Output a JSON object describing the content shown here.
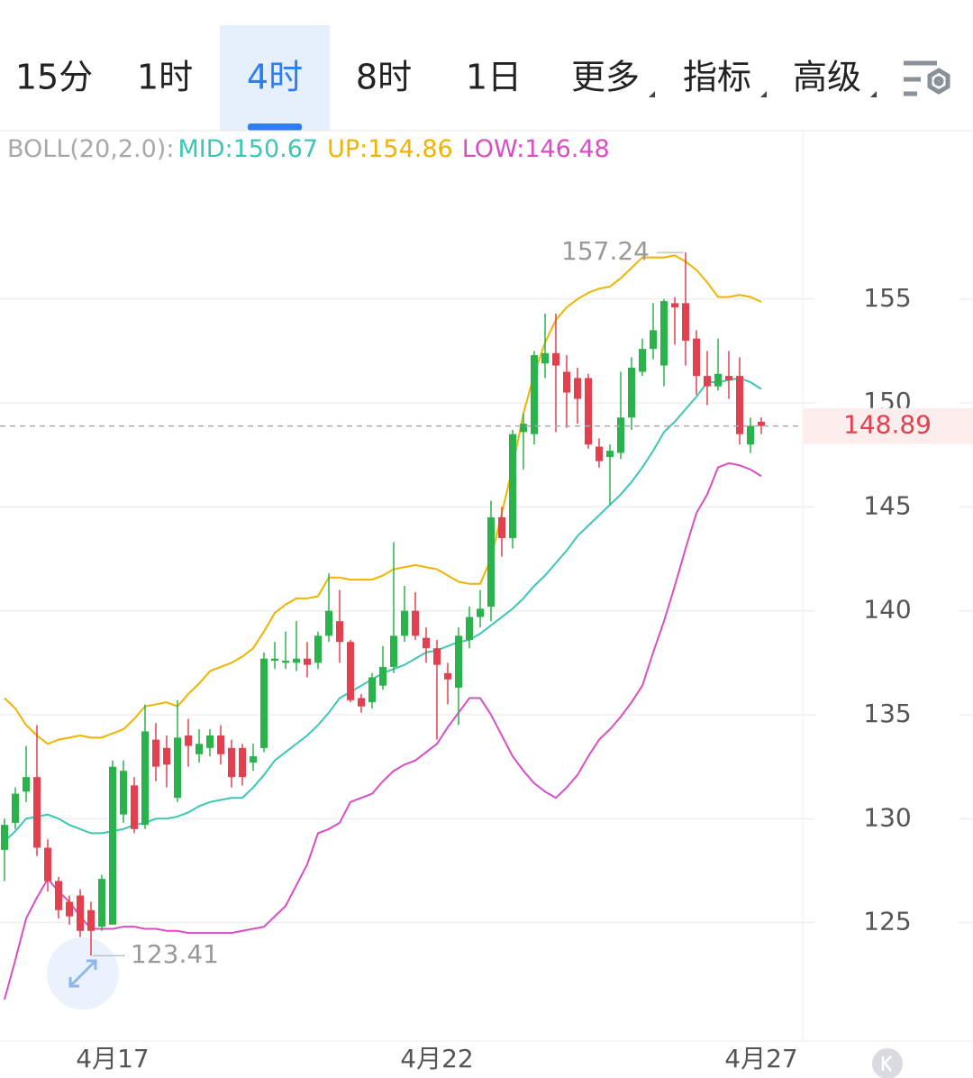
{
  "toolbar": {
    "tabs": [
      {
        "label": "15分"
      },
      {
        "label": "1时"
      },
      {
        "label": "4时",
        "active": true
      },
      {
        "label": "8时"
      },
      {
        "label": "1日"
      },
      {
        "label": "更多",
        "menu": true
      },
      {
        "label": "指标",
        "menu": true
      },
      {
        "label": "高级",
        "menu": true
      }
    ]
  },
  "chart_data": {
    "type": "candlestick",
    "indicator": {
      "label": "BOLL(20,2.0):",
      "series": [
        {
          "name": "MID:",
          "color": "#3cc6b4",
          "values": [
            128.9,
            129.4,
            130.0,
            130.1,
            130.2,
            130.0,
            129.7,
            129.5,
            129.3,
            129.3,
            129.4,
            129.5,
            129.7,
            129.8,
            130.0,
            130.0,
            130.1,
            130.3,
            130.6,
            130.8,
            130.9,
            131.0,
            131.0,
            131.5,
            132.1,
            132.8,
            133.2,
            133.6,
            134.0,
            134.5,
            135.1,
            135.8,
            136.1,
            136.4,
            136.7,
            137.0,
            137.2,
            137.4,
            137.7,
            138.0,
            138.1,
            138.3,
            138.5,
            138.6,
            138.9,
            139.3,
            139.7,
            140.1,
            140.6,
            141.2,
            141.7,
            142.3,
            142.9,
            143.6,
            144.1,
            144.6,
            145.1,
            145.6,
            146.2,
            146.9,
            147.7,
            148.6,
            149.1,
            149.7,
            150.3,
            151.0,
            151.0,
            151.1,
            151.2,
            151.0,
            150.67
          ]
        },
        {
          "name": "UP:",
          "color": "#f0b400",
          "values": [
            135.8,
            135.3,
            134.5,
            134.0,
            133.6,
            133.8,
            133.9,
            134.0,
            133.9,
            133.9,
            134.1,
            134.3,
            134.8,
            135.4,
            135.5,
            135.6,
            135.4,
            136.0,
            136.5,
            137.1,
            137.3,
            137.5,
            137.8,
            138.2,
            139.0,
            139.9,
            140.3,
            140.6,
            140.6,
            140.7,
            141.6,
            141.6,
            141.5,
            141.5,
            141.5,
            141.7,
            142.0,
            142.1,
            142.2,
            142.1,
            142.0,
            141.7,
            141.4,
            141.3,
            141.3,
            142.5,
            144.7,
            146.9,
            149.5,
            151.4,
            152.9,
            154.0,
            154.6,
            155.0,
            155.3,
            155.5,
            155.6,
            156.0,
            156.5,
            157.0,
            157.0,
            157.0,
            157.1,
            156.8,
            156.4,
            155.8,
            155.1,
            155.1,
            155.2,
            155.1,
            154.86
          ]
        },
        {
          "name": "LOW:",
          "color": "#d84ec4",
          "values": [
            121.3,
            123.2,
            125.2,
            126.2,
            127.1,
            126.5,
            126.0,
            125.3,
            124.7,
            124.7,
            124.7,
            124.8,
            124.8,
            124.7,
            124.7,
            124.6,
            124.6,
            124.5,
            124.5,
            124.5,
            124.5,
            124.5,
            124.6,
            124.7,
            124.8,
            125.3,
            125.8,
            126.8,
            127.8,
            129.3,
            129.5,
            129.8,
            130.8,
            131.0,
            131.2,
            131.8,
            132.3,
            132.6,
            132.8,
            133.2,
            133.6,
            134.4,
            135.1,
            135.8,
            135.8,
            135.0,
            134.0,
            133.0,
            132.3,
            131.7,
            131.3,
            131.0,
            131.5,
            132.1,
            133.0,
            133.8,
            134.3,
            134.9,
            135.6,
            136.4,
            138.0,
            139.5,
            141.2,
            143.0,
            144.7,
            145.6,
            146.9,
            147.1,
            147.0,
            146.8,
            146.48
          ]
        }
      ]
    },
    "categories": [
      null,
      null,
      null,
      null,
      null,
      null,
      null,
      null,
      null,
      null,
      "4月17",
      null,
      null,
      null,
      null,
      null,
      null,
      null,
      null,
      null,
      null,
      null,
      null,
      null,
      null,
      null,
      null,
      null,
      null,
      null,
      null,
      null,
      null,
      null,
      null,
      null,
      null,
      null,
      null,
      null,
      "4月22",
      null,
      null,
      null,
      null,
      null,
      null,
      null,
      null,
      null,
      null,
      null,
      null,
      null,
      null,
      null,
      null,
      null,
      null,
      null,
      null,
      null,
      null,
      null,
      null,
      null,
      null,
      null,
      null,
      null,
      "4月27"
    ],
    "open": [
      128.5,
      129.8,
      131.3,
      132.0,
      128.6,
      127.0,
      126.0,
      126.3,
      125.6,
      124.8,
      124.9,
      130.2,
      131.6,
      129.7,
      133.8,
      133.4,
      131.0,
      134.0,
      133.1,
      133.4,
      134.0,
      133.4,
      133.4,
      132.7,
      133.4,
      137.6,
      137.5,
      137.5,
      137.7,
      137.5,
      138.8,
      139.5,
      138.5,
      135.8,
      135.6,
      136.4,
      137.3,
      138.8,
      140.0,
      138.7,
      138.2,
      137.0,
      136.3,
      138.6,
      139.7,
      140.2,
      144.5,
      143.5,
      148.6,
      148.5,
      151.9,
      152.4,
      151.5,
      151.2,
      151.2,
      147.9,
      147.4,
      147.6,
      149.3,
      151.5,
      152.6,
      151.8,
      154.8,
      154.8,
      153.1,
      151.3,
      150.8,
      151.3,
      151.3,
      148.0,
      149.1
    ],
    "high": [
      130.0,
      131.5,
      133.5,
      134.5,
      129.0,
      127.2,
      126.3,
      126.6,
      126.0,
      127.3,
      132.8,
      132.8,
      132.0,
      135.5,
      134.6,
      134.0,
      135.7,
      134.8,
      134.3,
      134.3,
      134.5,
      133.8,
      133.6,
      133.6,
      138.0,
      138.5,
      139.0,
      139.5,
      138.5,
      139.0,
      141.8,
      141.0,
      138.6,
      136.0,
      137.0,
      138.3,
      143.3,
      141.2,
      140.9,
      139.2,
      138.6,
      137.5,
      139.2,
      140.2,
      141.0,
      145.3,
      145.0,
      148.7,
      149.5,
      152.5,
      154.3,
      154.3,
      152.3,
      151.7,
      151.4,
      148.3,
      148.0,
      151.5,
      152.2,
      153.1,
      154.8,
      155.0,
      155.1,
      157.24,
      153.5,
      152.5,
      153.1,
      152.5,
      152.2,
      149.3,
      149.3
    ],
    "low": [
      127.0,
      129.5,
      130.8,
      128.2,
      126.5,
      125.2,
      124.9,
      124.3,
      123.41,
      124.6,
      124.9,
      129.8,
      129.3,
      129.5,
      131.8,
      131.5,
      130.8,
      132.5,
      132.7,
      133.0,
      132.6,
      131.5,
      131.6,
      132.3,
      133.2,
      137.2,
      137.2,
      137.1,
      136.8,
      137.2,
      138.5,
      137.5,
      135.6,
      135.1,
      135.3,
      136.2,
      137.0,
      138.5,
      138.6,
      137.5,
      133.8,
      135.5,
      134.5,
      138.2,
      139.2,
      139.5,
      142.6,
      143.0,
      146.8,
      148.0,
      151.2,
      148.6,
      148.8,
      149.0,
      147.8,
      146.9,
      145.1,
      147.3,
      148.7,
      151.3,
      152.1,
      150.8,
      152.8,
      151.8,
      150.4,
      149.9,
      150.6,
      150.2,
      148.0,
      147.6,
      148.5
    ],
    "close": [
      129.7,
      131.2,
      132.0,
      128.6,
      127.0,
      125.6,
      125.3,
      124.6,
      124.6,
      127.1,
      132.5,
      132.3,
      129.5,
      134.2,
      132.5,
      132.6,
      133.9,
      133.5,
      133.6,
      134.0,
      133.1,
      132.0,
      132.0,
      133.0,
      137.7,
      137.7,
      137.6,
      137.7,
      137.4,
      138.8,
      140.0,
      138.5,
      135.7,
      135.4,
      136.8,
      137.3,
      138.8,
      140.0,
      138.8,
      138.2,
      137.4,
      136.7,
      138.8,
      139.7,
      140.1,
      144.5,
      143.5,
      148.5,
      149.0,
      152.3,
      152.4,
      151.8,
      150.5,
      150.2,
      148.0,
      147.2,
      147.7,
      149.3,
      151.7,
      152.6,
      153.5,
      154.9,
      154.6,
      153.0,
      151.3,
      150.8,
      151.4,
      151.1,
      148.5,
      148.9,
      148.89
    ],
    "up_color": "#2ab34a",
    "down_color": "#e2404f",
    "ylim": [
      119.3,
      163.1
    ],
    "yticks": [
      125,
      130,
      135,
      140,
      145,
      150,
      155
    ],
    "grid": true
  }
}
